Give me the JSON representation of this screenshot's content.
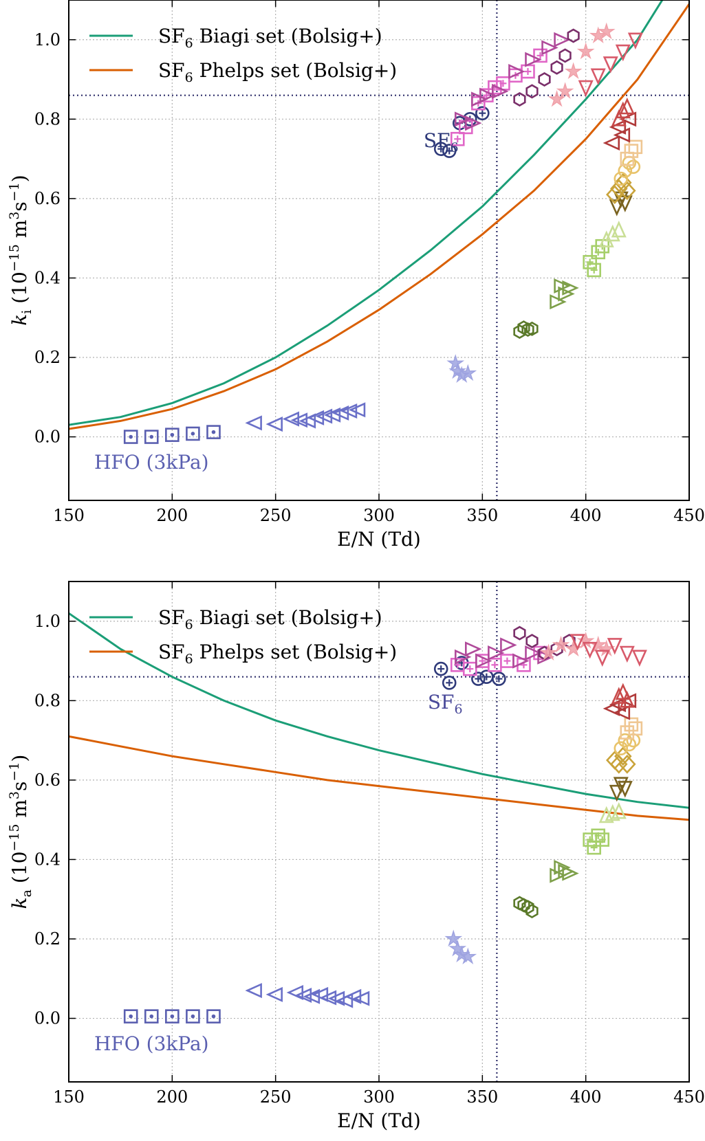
{
  "chart_data": [
    {
      "type": "scatter",
      "xlabel": "E/N (Td)",
      "ylabel": "k_i (10^-15 m^3 s^-1)",
      "ylabel_parts": {
        "sym": "k",
        "sub": "i",
        "pre": " (10",
        "exp1": "−15",
        "mid": " m",
        "exp2": "3",
        "s": "s",
        "exp3": "−1",
        "post": ")"
      },
      "xlim": [
        150,
        450
      ],
      "ylim": [
        -0.16,
        1.1
      ],
      "xticks": [
        150,
        200,
        250,
        300,
        350,
        400,
        450
      ],
      "yticks": [
        0.0,
        0.2,
        0.4,
        0.6,
        0.8,
        1.0
      ],
      "xtick_labels": [
        "150",
        "200",
        "250",
        "300",
        "350",
        "400",
        "450"
      ],
      "ytick_labels": [
        "0.0",
        "0.2",
        "0.4",
        "0.6",
        "0.8",
        "1.0"
      ],
      "grid": true,
      "legend_position": "top-left",
      "reference": {
        "x": 357,
        "y": 0.86
      },
      "lines": [
        {
          "name": "SF6 Biagi set (Bolsig+)",
          "label_parts": {
            "a": "SF",
            "sub": "6",
            "b": " Biagi set (Bolsig+)"
          },
          "color": "#1b9e77",
          "x": [
            150,
            175,
            200,
            225,
            250,
            275,
            300,
            325,
            350,
            375,
            400,
            425,
            437
          ],
          "y": [
            0.03,
            0.05,
            0.085,
            0.135,
            0.2,
            0.28,
            0.37,
            0.47,
            0.58,
            0.71,
            0.85,
            1.0,
            1.1
          ]
        },
        {
          "name": "SF6 Phelps set (Bolsig+)",
          "label_parts": {
            "a": "SF",
            "sub": "6",
            "b": " Phelps set (Bolsig+)"
          },
          "color": "#d95f02",
          "x": [
            150,
            175,
            200,
            225,
            250,
            275,
            300,
            325,
            350,
            375,
            400,
            425,
            450
          ],
          "y": [
            0.02,
            0.04,
            0.07,
            0.115,
            0.17,
            0.24,
            0.32,
            0.41,
            0.51,
            0.62,
            0.75,
            0.9,
            1.09
          ]
        }
      ],
      "marker_groups": [
        {
          "marker": "square-dot",
          "color": "#5a5fb0",
          "x": [
            180,
            190,
            200,
            210,
            220
          ],
          "y": [
            0.0,
            0.0,
            0.005,
            0.008,
            0.012
          ]
        },
        {
          "marker": "triangle-left",
          "color": "#6a70c8",
          "x": [
            240,
            250,
            258,
            262,
            266,
            270,
            274,
            278,
            282,
            286,
            290
          ],
          "y": [
            0.035,
            0.032,
            0.045,
            0.042,
            0.04,
            0.048,
            0.052,
            0.055,
            0.06,
            0.065,
            0.068
          ]
        },
        {
          "marker": "star",
          "color": "#9ea3e0",
          "x": [
            337,
            338,
            340,
            343
          ],
          "y": [
            0.185,
            0.165,
            0.155,
            0.16
          ]
        },
        {
          "marker": "hexagon",
          "color": "#5b7a2a",
          "x": [
            368,
            370,
            372,
            374
          ],
          "y": [
            0.265,
            0.275,
            0.27,
            0.272
          ]
        },
        {
          "marker": "triangle-right",
          "color": "#7ea04a",
          "x": [
            386,
            388,
            390,
            392
          ],
          "y": [
            0.34,
            0.38,
            0.36,
            0.375
          ]
        },
        {
          "marker": "square-plus",
          "color": "#a6cf6a",
          "x": [
            402,
            404,
            406,
            408
          ],
          "y": [
            0.44,
            0.42,
            0.465,
            0.48
          ]
        },
        {
          "marker": "triangle-up",
          "color": "#c9de96",
          "x": [
            410,
            413,
            416
          ],
          "y": [
            0.495,
            0.51,
            0.52
          ]
        },
        {
          "marker": "triangle-down",
          "color": "#7a6320",
          "x": [
            415,
            417,
            419
          ],
          "y": [
            0.58,
            0.6,
            0.59
          ]
        },
        {
          "marker": "diamond",
          "color": "#c9a33a",
          "x": [
            414,
            416,
            418,
            420
          ],
          "y": [
            0.61,
            0.625,
            0.64,
            0.62
          ]
        },
        {
          "marker": "circle",
          "color": "#e8c36a",
          "x": [
            417,
            419,
            421,
            423
          ],
          "y": [
            0.65,
            0.67,
            0.69,
            0.68
          ]
        },
        {
          "marker": "square",
          "color": "#efc793",
          "x": [
            420,
            422,
            424
          ],
          "y": [
            0.7,
            0.72,
            0.73
          ]
        },
        {
          "marker": "triangle-left",
          "color": "#b03a3a",
          "x": [
            413,
            416,
            418,
            421
          ],
          "y": [
            0.74,
            0.78,
            0.76,
            0.8
          ]
        },
        {
          "marker": "triangle-up",
          "color": "#c84a4a",
          "x": [
            416,
            418,
            420
          ],
          "y": [
            0.8,
            0.82,
            0.83
          ]
        },
        {
          "marker": "circle-plus",
          "color": "#2f3a7a",
          "x": [
            330,
            334,
            339,
            344,
            350
          ],
          "y": [
            0.725,
            0.72,
            0.79,
            0.8,
            0.815
          ]
        },
        {
          "marker": "square-plus",
          "color": "#e066c7",
          "x": [
            338,
            342,
            348,
            352,
            356,
            360,
            366,
            372,
            378
          ],
          "y": [
            0.75,
            0.78,
            0.84,
            0.86,
            0.88,
            0.89,
            0.91,
            0.92,
            0.96
          ]
        },
        {
          "marker": "triangle-right",
          "color": "#b04a9a",
          "x": [
            340,
            345,
            348,
            352,
            358,
            366,
            374,
            382,
            388
          ],
          "y": [
            0.8,
            0.79,
            0.85,
            0.86,
            0.87,
            0.92,
            0.95,
            0.98,
            1.0
          ]
        },
        {
          "marker": "hexagon",
          "color": "#7a2f6a",
          "x": [
            368,
            374,
            380,
            386,
            390,
            394
          ],
          "y": [
            0.85,
            0.87,
            0.9,
            0.93,
            0.96,
            1.01
          ]
        },
        {
          "marker": "star",
          "color": "#f0a0a8",
          "x": [
            386,
            390,
            394,
            400,
            406,
            410
          ],
          "y": [
            0.85,
            0.87,
            0.92,
            0.97,
            1.01,
            1.02
          ]
        },
        {
          "marker": "triangle-down",
          "color": "#d85a6a",
          "x": [
            400,
            406,
            412,
            418,
            424
          ],
          "y": [
            0.88,
            0.91,
            0.94,
            0.97,
            1.0
          ]
        }
      ],
      "annotations": [
        {
          "text": "SF6",
          "parts": {
            "a": "SF",
            "sub": "6"
          },
          "x": 330,
          "y": 0.73,
          "color": "#2f3a7a"
        },
        {
          "text": "HFO (3kPa)",
          "x": 190,
          "y": -0.08,
          "color": "#5a5fb0"
        }
      ]
    },
    {
      "type": "scatter",
      "xlabel": "E/N (Td)",
      "ylabel": "k_a (10^-15 m^3 s^-1)",
      "ylabel_parts": {
        "sym": "k",
        "sub": "a",
        "pre": " (10",
        "exp1": "−15",
        "mid": " m",
        "exp2": "3",
        "s": "s",
        "exp3": "−1",
        "post": ")"
      },
      "xlim": [
        150,
        450
      ],
      "ylim": [
        -0.16,
        1.1
      ],
      "xticks": [
        150,
        200,
        250,
        300,
        350,
        400,
        450
      ],
      "yticks": [
        0.0,
        0.2,
        0.4,
        0.6,
        0.8,
        1.0
      ],
      "xtick_labels": [
        "150",
        "200",
        "250",
        "300",
        "350",
        "400",
        "450"
      ],
      "ytick_labels": [
        "0.0",
        "0.2",
        "0.4",
        "0.6",
        "0.8",
        "1.0"
      ],
      "grid": true,
      "legend_position": "top-left",
      "reference": {
        "x": 357,
        "y": 0.86
      },
      "lines": [
        {
          "name": "SF6 Biagi set (Bolsig+)",
          "label_parts": {
            "a": "SF",
            "sub": "6",
            "b": " Biagi set (Bolsig+)"
          },
          "color": "#1b9e77",
          "x": [
            150,
            175,
            200,
            225,
            250,
            275,
            300,
            325,
            350,
            375,
            400,
            425,
            450
          ],
          "y": [
            1.02,
            0.93,
            0.86,
            0.8,
            0.75,
            0.71,
            0.675,
            0.645,
            0.615,
            0.59,
            0.565,
            0.545,
            0.53
          ]
        },
        {
          "name": "SF6 Phelps set (Bolsig+)",
          "label_parts": {
            "a": "SF",
            "sub": "6",
            "b": " Phelps set (Bolsig+)"
          },
          "color": "#d95f02",
          "x": [
            150,
            175,
            200,
            225,
            250,
            275,
            300,
            325,
            350,
            375,
            400,
            425,
            450
          ],
          "y": [
            0.71,
            0.685,
            0.66,
            0.64,
            0.62,
            0.6,
            0.585,
            0.57,
            0.555,
            0.54,
            0.525,
            0.51,
            0.5
          ]
        }
      ],
      "marker_groups": [
        {
          "marker": "square-dot",
          "color": "#5a5fb0",
          "x": [
            180,
            190,
            200,
            210,
            220
          ],
          "y": [
            0.005,
            0.005,
            0.005,
            0.005,
            0.005
          ]
        },
        {
          "marker": "triangle-left",
          "color": "#6a70c8",
          "x": [
            240,
            250,
            260,
            264,
            268,
            272,
            276,
            280,
            284,
            288,
            292
          ],
          "y": [
            0.07,
            0.06,
            0.065,
            0.058,
            0.055,
            0.06,
            0.052,
            0.05,
            0.045,
            0.055,
            0.05
          ]
        },
        {
          "marker": "star",
          "color": "#9ea3e0",
          "x": [
            336,
            338,
            340,
            343
          ],
          "y": [
            0.2,
            0.175,
            0.16,
            0.155
          ]
        },
        {
          "marker": "hexagon",
          "color": "#5b7a2a",
          "x": [
            368,
            370,
            372,
            374
          ],
          "y": [
            0.29,
            0.285,
            0.28,
            0.27
          ]
        },
        {
          "marker": "triangle-right",
          "color": "#7ea04a",
          "x": [
            386,
            388,
            390,
            392
          ],
          "y": [
            0.36,
            0.38,
            0.37,
            0.365
          ]
        },
        {
          "marker": "square-plus",
          "color": "#a6cf6a",
          "x": [
            402,
            404,
            406,
            408
          ],
          "y": [
            0.45,
            0.43,
            0.46,
            0.45
          ]
        },
        {
          "marker": "triangle-up",
          "color": "#c9de96",
          "x": [
            410,
            413,
            416
          ],
          "y": [
            0.51,
            0.515,
            0.52
          ]
        },
        {
          "marker": "triangle-down",
          "color": "#7a6320",
          "x": [
            415,
            417,
            419
          ],
          "y": [
            0.57,
            0.59,
            0.58
          ]
        },
        {
          "marker": "diamond",
          "color": "#c9a33a",
          "x": [
            414,
            416,
            418,
            420
          ],
          "y": [
            0.65,
            0.64,
            0.66,
            0.64
          ]
        },
        {
          "marker": "circle",
          "color": "#e8c36a",
          "x": [
            417,
            419,
            421,
            423
          ],
          "y": [
            0.68,
            0.7,
            0.69,
            0.7
          ]
        },
        {
          "marker": "square",
          "color": "#efc793",
          "x": [
            420,
            422,
            424
          ],
          "y": [
            0.72,
            0.74,
            0.73
          ]
        },
        {
          "marker": "triangle-left",
          "color": "#b03a3a",
          "x": [
            413,
            416,
            418,
            421
          ],
          "y": [
            0.78,
            0.79,
            0.77,
            0.8
          ]
        },
        {
          "marker": "triangle-up",
          "color": "#c84a4a",
          "x": [
            416,
            418,
            420
          ],
          "y": [
            0.81,
            0.82,
            0.8
          ]
        },
        {
          "marker": "circle-plus",
          "color": "#2f3a7a",
          "x": [
            330,
            334,
            340,
            348,
            352,
            358
          ],
          "y": [
            0.88,
            0.845,
            0.895,
            0.855,
            0.86,
            0.855
          ]
        },
        {
          "marker": "square-plus",
          "color": "#e066c7",
          "x": [
            338,
            344,
            350,
            356,
            362,
            370,
            378
          ],
          "y": [
            0.89,
            0.88,
            0.9,
            0.89,
            0.9,
            0.89,
            0.92
          ]
        },
        {
          "marker": "triangle-right",
          "color": "#b04a9a",
          "x": [
            340,
            345,
            350,
            356,
            362,
            368,
            374,
            380
          ],
          "y": [
            0.91,
            0.93,
            0.9,
            0.92,
            0.94,
            0.9,
            0.92,
            0.91
          ]
        },
        {
          "marker": "hexagon",
          "color": "#7a2f6a",
          "x": [
            368,
            374,
            380,
            386,
            392
          ],
          "y": [
            0.97,
            0.95,
            0.92,
            0.93,
            0.95
          ]
        },
        {
          "marker": "star",
          "color": "#f0a0a8",
          "x": [
            382,
            388,
            394,
            400,
            406,
            410
          ],
          "y": [
            0.92,
            0.94,
            0.93,
            0.95,
            0.94,
            0.93
          ]
        },
        {
          "marker": "triangle-down",
          "color": "#d85a6a",
          "x": [
            396,
            402,
            408,
            414,
            420,
            426
          ],
          "y": [
            0.95,
            0.93,
            0.91,
            0.94,
            0.92,
            0.91
          ]
        }
      ],
      "annotations": [
        {
          "text": "SF6",
          "parts": {
            "a": "SF",
            "sub": "6"
          },
          "x": 332,
          "y": 0.78,
          "color": "#4a4a9a"
        },
        {
          "text": "HFO (3kPa)",
          "x": 190,
          "y": -0.08,
          "color": "#5a5fb0"
        }
      ]
    }
  ]
}
